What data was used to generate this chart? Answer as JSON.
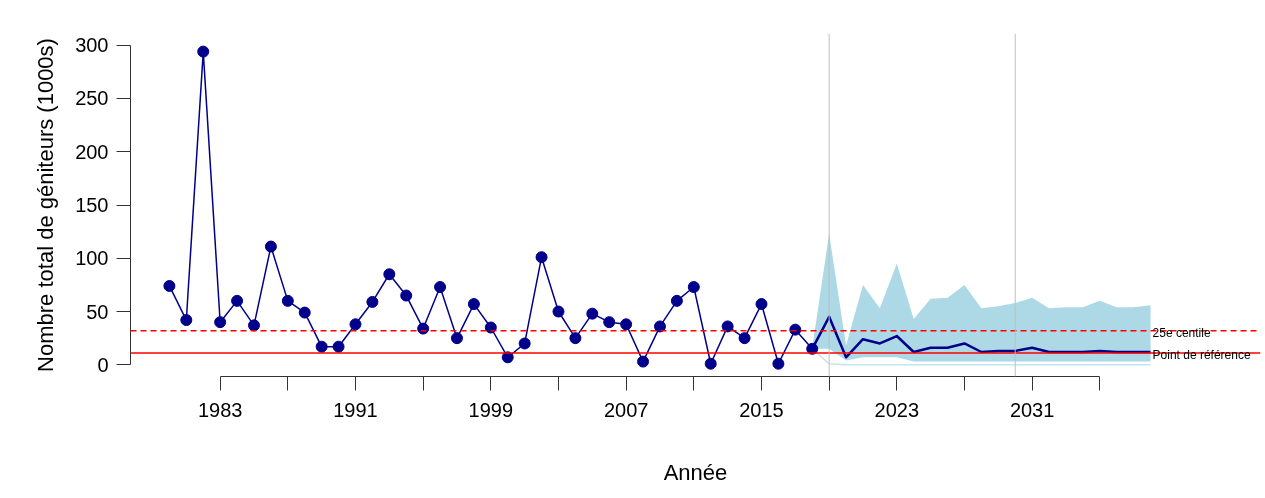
{
  "chart_data": {
    "type": "line",
    "xlabel": "Année",
    "ylabel": "Nombre total de géniteurs (1000s)",
    "xlim": [
      1977.7,
      2044.5
    ],
    "ylim": [
      -11,
      311
    ],
    "xticks": [
      1983,
      {
        "value": 1987,
        "label": null
      },
      1991,
      {
        "value": 1995,
        "label": null
      },
      1999,
      {
        "value": 2003,
        "label": null
      },
      2007,
      {
        "value": 2011,
        "label": null
      },
      2015,
      {
        "value": 2019,
        "label": null
      },
      2023,
      {
        "value": 2027,
        "label": null
      },
      2031,
      {
        "value": 2035,
        "label": null
      }
    ],
    "yticks": [
      0,
      50,
      100,
      150,
      200,
      250,
      300
    ],
    "grid": false,
    "ref_lines": [
      {
        "axis": "y",
        "value": 32,
        "label": "25e centile",
        "color": "#ff0000",
        "line_style": "dashed"
      },
      {
        "axis": "y",
        "value": 11,
        "label": "Point de référence",
        "color": "#ff0000",
        "line_style": "solid"
      },
      {
        "axis": "x",
        "value": 2019,
        "label": null,
        "color": "#bebebe",
        "line_style": "solid"
      },
      {
        "axis": "x",
        "value": 2030,
        "label": null,
        "color": "#bebebe",
        "line_style": "solid"
      }
    ],
    "series": [
      {
        "color": "#c4e4ee",
        "marker": "none",
        "x": [
          2018,
          2019,
          2020,
          2021,
          2022,
          2023,
          2024,
          2025,
          2026,
          2027,
          2028,
          2029,
          2030,
          2031,
          2032,
          2033,
          2034,
          2035,
          2036,
          2037,
          2038
        ],
        "values": [
          15,
          1,
          0,
          0,
          0,
          0,
          0,
          0,
          0,
          0,
          0,
          0,
          0,
          0,
          0,
          0,
          0,
          0,
          0,
          0,
          0
        ]
      },
      {
        "color": "#00008b",
        "marker": "none",
        "x": [
          2018,
          2019,
          2020,
          2021,
          2022,
          2023,
          2024,
          2025,
          2026,
          2027,
          2028,
          2029,
          2030,
          2031,
          2032,
          2033,
          2034,
          2035,
          2036,
          2037,
          2038
        ],
        "values": [
          15,
          45,
          7,
          24,
          20,
          27,
          12,
          16,
          16,
          20,
          12,
          13,
          13,
          16,
          12,
          12,
          12,
          13,
          12,
          12,
          12
        ],
        "lower": [
          15,
          15,
          4,
          7,
          7,
          7,
          3,
          3,
          3,
          3,
          3,
          3,
          3,
          3,
          3,
          3,
          3,
          3,
          3,
          3,
          3
        ],
        "upper": [
          16,
          123,
          18,
          75,
          53,
          95,
          43,
          62,
          63,
          75,
          53,
          55,
          58,
          63,
          53,
          54,
          54,
          60,
          54,
          54,
          56
        ]
      },
      {
        "color": "#00008b",
        "marker": "circle",
        "x": [
          1980,
          1981,
          1982,
          1983,
          1984,
          1985,
          1986,
          1987,
          1988,
          1989,
          1990,
          1991,
          1992,
          1993,
          1994,
          1995,
          1996,
          1997,
          1998,
          1999,
          2000,
          2001,
          2002,
          2003,
          2004,
          2005,
          2006,
          2007,
          2008,
          2009,
          2010,
          2011,
          2012,
          2013,
          2014,
          2015,
          2016,
          2017,
          2018
        ],
        "values": [
          74,
          42,
          294,
          40,
          60,
          37,
          111,
          60,
          49,
          17,
          17,
          38,
          59,
          85,
          65,
          34,
          73,
          25,
          57,
          35,
          7,
          20,
          101,
          50,
          25,
          48,
          40,
          38,
          3,
          36,
          60,
          73,
          1,
          36,
          25,
          57,
          1,
          33,
          15
        ]
      }
    ]
  }
}
